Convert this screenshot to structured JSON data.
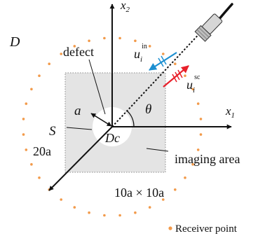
{
  "labels": {
    "domain": "D",
    "defect": "defect",
    "radius": "a",
    "boundary": "S",
    "outer_radius": "20a",
    "defect_center": "Dc",
    "angle": "θ",
    "imaging_area": "imaging area",
    "area_size": "10a × 10a",
    "legend_receiver": "Receiver point"
  },
  "axes": {
    "x1": {
      "base": "x",
      "sub": "1"
    },
    "x2": {
      "base": "x",
      "sub": "2"
    }
  },
  "waves": {
    "incident": {
      "base": "u",
      "sub": "i",
      "sup": "in",
      "color": "#1c8fd1"
    },
    "scattered": {
      "base": "u",
      "sub": "i",
      "sup": "sc",
      "color": "#e8202a"
    }
  },
  "colors": {
    "receiver_dot": "#f29a4a",
    "imaging_area_fill": "#e4e4e4",
    "ink": "#111111"
  },
  "receivers": {
    "count": 36
  }
}
